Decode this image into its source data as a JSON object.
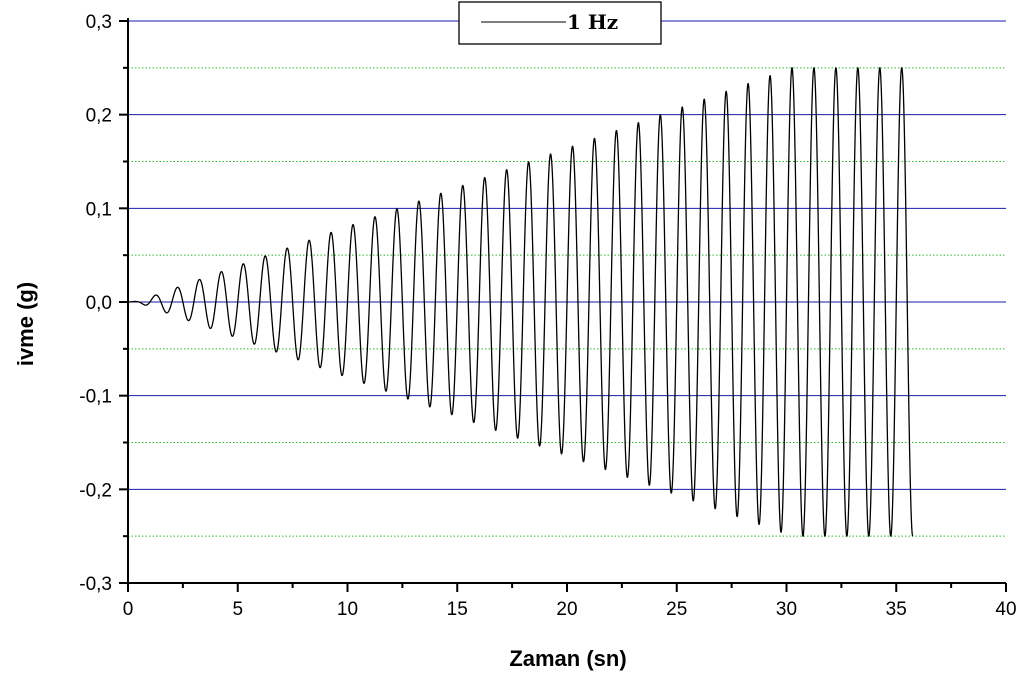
{
  "chart_data": {
    "type": "line",
    "title": "",
    "xlabel": "Zaman (sn)",
    "ylabel": "ivme (g)",
    "xlim": [
      0,
      40
    ],
    "ylim": [
      -0.3,
      0.3
    ],
    "x_ticks": [
      0,
      5,
      10,
      15,
      20,
      25,
      30,
      35,
      40
    ],
    "x_tick_labels": [
      "0",
      "5",
      "10",
      "15",
      "20",
      "25",
      "30",
      "35",
      "40"
    ],
    "y_ticks": [
      -0.3,
      -0.2,
      -0.1,
      0.0,
      0.1,
      0.2,
      0.3
    ],
    "y_tick_labels": [
      "-0,3",
      "-0,2",
      "-0,1",
      "0,0",
      "0,1",
      "0,2",
      "0,3"
    ],
    "minor_grid_y": [
      -0.25,
      -0.15,
      -0.05,
      0.05,
      0.15,
      0.25
    ],
    "grid": {
      "major": true,
      "minor": true
    },
    "legend": {
      "position": "top-center",
      "entries": [
        "1 Hz"
      ]
    },
    "series": [
      {
        "name": "1 Hz",
        "frequency_hz": 1,
        "x_start": 0,
        "x_end": 35.75,
        "envelope": {
          "x": [
            0,
            0.5,
            30.25,
            35.75
          ],
          "amplitude": [
            0,
            0.001,
            0.25,
            0.25
          ]
        },
        "peaks": {
          "x": [
            1.25,
            2.25,
            3.25,
            4.25,
            5.25,
            6.25,
            7.25,
            8.25,
            9.25,
            10.25,
            11.25,
            12.25,
            13.25,
            14.25,
            15.25,
            16.25,
            17.25,
            18.25,
            19.25,
            20.25,
            21.25,
            22.25,
            23.25,
            24.25,
            25.25,
            26.25,
            27.25,
            28.25,
            29.25,
            30.25,
            31.25,
            32.25,
            33.25,
            34.25,
            35.25
          ],
          "y": [
            0.009,
            0.017,
            0.026,
            0.034,
            0.042,
            0.051,
            0.059,
            0.067,
            0.076,
            0.084,
            0.093,
            0.101,
            0.109,
            0.118,
            0.126,
            0.134,
            0.143,
            0.151,
            0.16,
            0.168,
            0.176,
            0.185,
            0.193,
            0.201,
            0.21,
            0.218,
            0.227,
            0.235,
            0.243,
            0.25,
            0.25,
            0.25,
            0.25,
            0.25,
            0.25
          ]
        },
        "color": "#000000"
      }
    ],
    "colors": {
      "major_grid": "#1a1aa8",
      "minor_grid": "#2bb82b",
      "axis": "#000000",
      "series": "#000000"
    }
  }
}
